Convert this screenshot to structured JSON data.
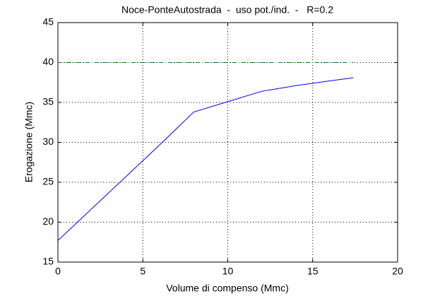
{
  "chart_data": {
    "type": "line",
    "title": "Noce-PonteAutostrada  -  uso pot./ind.  -   R=0.2",
    "xlabel": "Volume di compenso (Mmc)",
    "ylabel": "Erogazione (Mmc)",
    "series": [
      {
        "color": "#0000ff",
        "dash": "solid",
        "x": [
          0,
          2,
          4,
          6,
          8,
          10,
          12,
          14,
          16,
          17.4
        ],
        "values": [
          17.7,
          21.7,
          25.7,
          29.7,
          33.8,
          35.1,
          36.4,
          37.1,
          37.7,
          38.1
        ]
      },
      {
        "color": "#008000",
        "dash": "dashdot",
        "x": [
          0,
          17.4
        ],
        "values": [
          40,
          40
        ]
      }
    ],
    "xlim": [
      0,
      20
    ],
    "xticks": [
      0,
      5,
      10,
      15,
      20
    ],
    "ylim": [
      15,
      45
    ],
    "yticks": [
      15,
      20,
      25,
      30,
      35,
      40,
      45
    ],
    "grid": true
  }
}
